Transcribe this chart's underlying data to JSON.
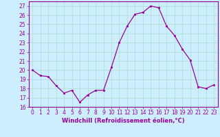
{
  "x": [
    0,
    1,
    2,
    3,
    4,
    5,
    6,
    7,
    8,
    9,
    10,
    11,
    12,
    13,
    14,
    15,
    16,
    17,
    18,
    19,
    20,
    21,
    22,
    23
  ],
  "y": [
    20,
    19.4,
    19.3,
    18.3,
    17.5,
    17.8,
    16.5,
    17.3,
    17.8,
    17.8,
    20.3,
    23.0,
    24.8,
    26.1,
    26.3,
    27.0,
    26.8,
    24.8,
    23.8,
    22.3,
    21.1,
    18.2,
    18.0,
    18.4
  ],
  "line_color": "#990099",
  "marker": "s",
  "marker_size": 1.8,
  "bg_color": "#cceeff",
  "grid_color": "#aaddcc",
  "xlabel": "Windchill (Refroidissement éolien,°C)",
  "xlabel_color": "#990099",
  "tick_color": "#990099",
  "ylim": [
    16,
    27.5
  ],
  "yticks": [
    16,
    17,
    18,
    19,
    20,
    21,
    22,
    23,
    24,
    25,
    26,
    27
  ],
  "xticks": [
    0,
    1,
    2,
    3,
    4,
    5,
    6,
    7,
    8,
    9,
    10,
    11,
    12,
    13,
    14,
    15,
    16,
    17,
    18,
    19,
    20,
    21,
    22,
    23
  ],
  "xtick_labels": [
    "0",
    "1",
    "2",
    "3",
    "4",
    "5",
    "6",
    "7",
    "8",
    "9",
    "10",
    "11",
    "12",
    "13",
    "14",
    "15",
    "16",
    "17",
    "18",
    "19",
    "20",
    "21",
    "22",
    "23"
  ],
  "spine_color": "#990099",
  "line_width": 0.9,
  "tick_fontsize": 5.5,
  "xlabel_fontsize": 6.0
}
